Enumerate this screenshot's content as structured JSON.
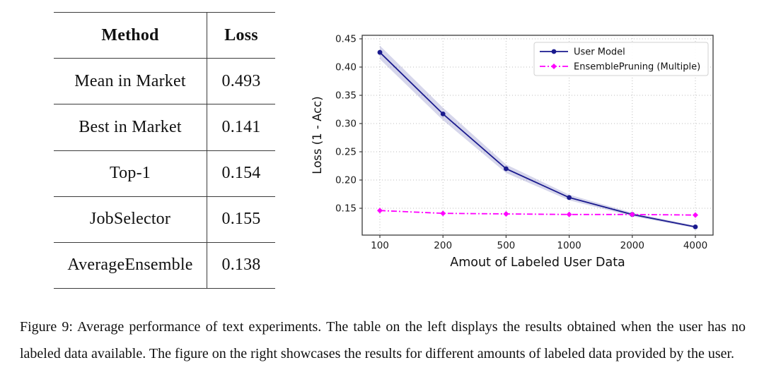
{
  "table": {
    "headers": {
      "method": "Method",
      "loss": "Loss"
    },
    "rows": [
      {
        "method": "Mean in Market",
        "loss": "0.493"
      },
      {
        "method": "Best in Market",
        "loss": "0.141"
      },
      {
        "method": "Top-1",
        "loss": "0.154"
      },
      {
        "method": "JobSelector",
        "loss": "0.155"
      },
      {
        "method": "AverageEnsemble",
        "loss": "0.138"
      }
    ]
  },
  "chart_data": {
    "type": "line",
    "x_categories": [
      "100",
      "200",
      "500",
      "1000",
      "2000",
      "4000"
    ],
    "series": [
      {
        "name": "User Model",
        "color": "#1a1a8e",
        "line_style": "solid",
        "marker": "circle",
        "values": [
          0.426,
          0.317,
          0.22,
          0.169,
          0.139,
          0.117
        ],
        "band_halfwidth": [
          0.012,
          0.011,
          0.0075,
          0.005,
          0.003,
          0.002
        ]
      },
      {
        "name": "EnsemblePruning (Multiple)",
        "color": "#ff00ff",
        "line_style": "dashdot",
        "marker": "diamond",
        "values": [
          0.146,
          0.141,
          0.14,
          0.139,
          0.139,
          0.138
        ],
        "band_halfwidth": [
          0,
          0,
          0,
          0,
          0,
          0
        ]
      }
    ],
    "xlabel": "Amout of Labeled User Data",
    "ylabel": "Loss (1 - Acc)",
    "ylim": [
      0.1025,
      0.45625
    ],
    "yticks": [
      0.15,
      0.2,
      0.25,
      0.3,
      0.35,
      0.4,
      0.45
    ],
    "grid": true,
    "legend_position": "upper right",
    "colors": {
      "grid": "#bdbdbd",
      "spine": "#3a3a3a",
      "band_fill": "#1a1a8e",
      "legend_border": "#d0d0d0"
    }
  },
  "figure": {
    "caption": "Figure 9: Average performance of text experiments. The table on the left displays the results obtained when the user has no labeled data available. The figure on the right showcases the results for different amounts of labeled data provided by the user."
  }
}
